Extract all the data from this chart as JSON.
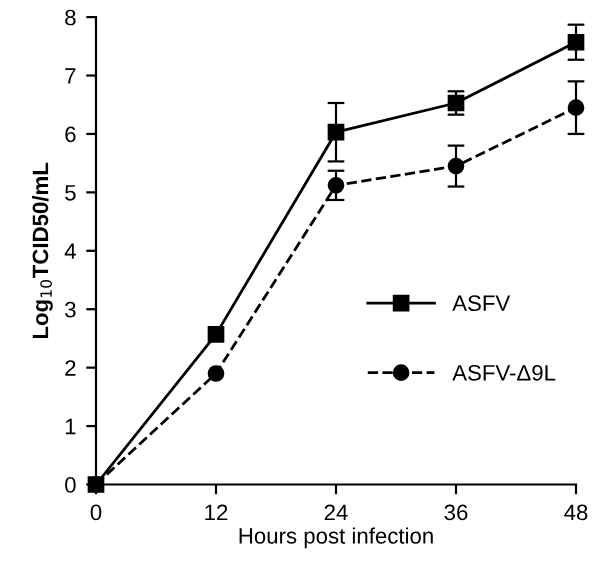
{
  "chart_data": {
    "type": "line",
    "xlabel": "Hours post infection",
    "ylabel": "Log$_{10}$TCID50/mL",
    "x": [
      0,
      12,
      24,
      36,
      48
    ],
    "series": [
      {
        "name": "ASFV",
        "color": "#000000",
        "marker": "square",
        "line_style": "solid",
        "values": [
          0,
          2.57,
          6.03,
          6.53,
          7.57
        ],
        "errors": [
          null,
          null,
          0.5,
          0.2,
          0.3
        ]
      },
      {
        "name": "ASFV-Δ9L",
        "color": "#000000",
        "marker": "circle",
        "line_style": "dashed",
        "values": [
          0,
          1.9,
          5.12,
          5.45,
          6.45
        ],
        "errors": [
          null,
          null,
          0.25,
          0.35,
          0.45
        ]
      }
    ],
    "xlim": [
      0,
      48
    ],
    "xticks": [
      0,
      12,
      24,
      36,
      48
    ],
    "ylim": [
      0,
      8
    ],
    "yticks": [
      0,
      1,
      2,
      3,
      4,
      5,
      6,
      7,
      8
    ],
    "grid": false,
    "legend": "bottom right"
  }
}
